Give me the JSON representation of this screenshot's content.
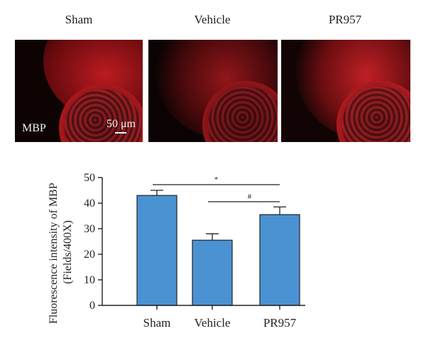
{
  "micrographs": {
    "panels": [
      {
        "title": "Sham",
        "label": "MBP",
        "scale_text": "50 μm"
      },
      {
        "title": "Vehicle",
        "label": "",
        "scale_text": ""
      },
      {
        "title": "PR957",
        "label": "",
        "scale_text": ""
      }
    ],
    "colors": {
      "stain": "#c0141a",
      "background": "#0d0303"
    }
  },
  "chart_data": {
    "type": "bar",
    "categories": [
      "Sham",
      "Vehicle",
      "PR957"
    ],
    "values": [
      43,
      25.5,
      35.5
    ],
    "errors": [
      2,
      2.5,
      3
    ],
    "ylabel_line1": "Fluorescence intensity of MBP",
    "ylabel_line2": "(Fields/400X)",
    "ylim": [
      0,
      50
    ],
    "yticks": [
      0,
      10,
      20,
      30,
      40,
      50
    ],
    "bar_color": "#4b92d3",
    "significance": [
      {
        "from": 0,
        "to": 2,
        "symbol": "*"
      },
      {
        "from": 1,
        "to": 2,
        "symbol": "#"
      }
    ]
  }
}
